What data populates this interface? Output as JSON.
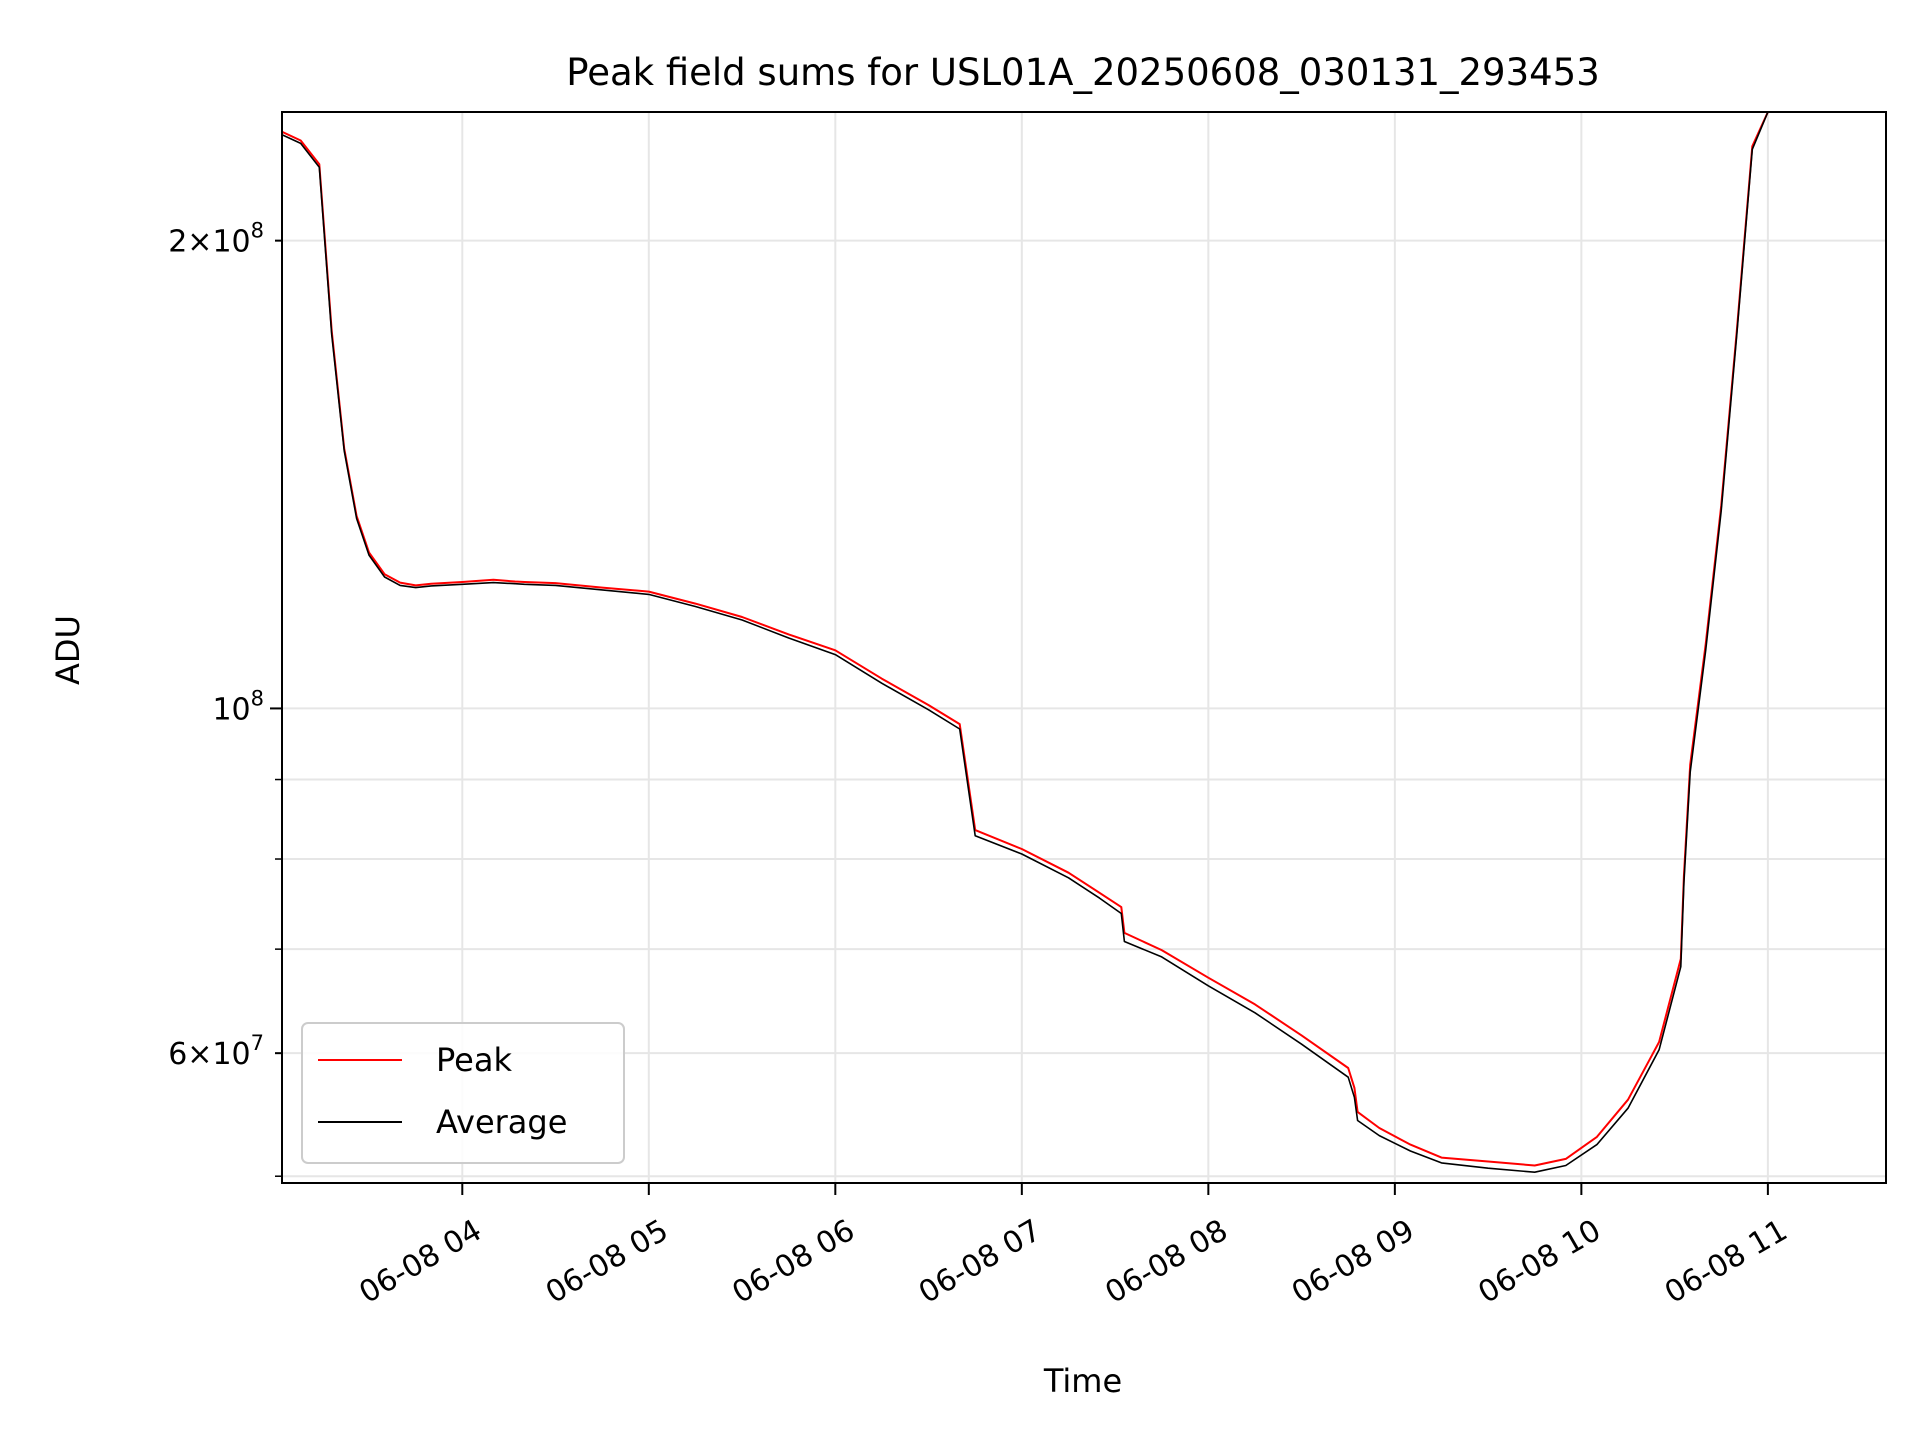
{
  "chart_data": {
    "type": "line",
    "title": "Peak field sums for USL01A_20250608_030131_293453",
    "xlabel": "Time",
    "ylabel": "ADU",
    "yscale": "log",
    "xlim": [
      "2025-06-08 03:02",
      "2025-06-08 11:38"
    ],
    "ylim": [
      49500000,
      242000000
    ],
    "x_ticks": [
      "06-08 04",
      "06-08 05",
      "06-08 06",
      "06-08 07",
      "06-08 08",
      "06-08 09",
      "06-08 10",
      "06-08 11"
    ],
    "y_ticks_major": [
      {
        "value": 100000000,
        "label": "10^8"
      }
    ],
    "y_ticks_minor": [
      {
        "value": 200000000,
        "label": "2×10^8"
      },
      {
        "value": 60000000,
        "label": "6×10^7"
      }
    ],
    "y_ticks_minor_unlabeled": [
      50000000,
      70000000,
      80000000,
      90000000,
      300000000,
      400000000
    ],
    "grid": true,
    "legend_placement": "lower-left",
    "series": [
      {
        "name": "Peak",
        "color": "#ff0000",
        "x": [
          "03:02",
          "03:08",
          "03:14",
          "03:18",
          "03:22",
          "03:26",
          "03:30",
          "03:35",
          "03:40",
          "03:45",
          "03:50",
          "04:00",
          "04:10",
          "04:17",
          "04:20",
          "04:30",
          "04:45",
          "05:00",
          "05:15",
          "05:30",
          "05:45",
          "06:00",
          "06:15",
          "06:30",
          "06:40",
          "06:45",
          "07:00",
          "07:15",
          "07:25",
          "07:32",
          "07:33",
          "07:45",
          "08:00",
          "08:15",
          "08:30",
          "08:45",
          "08:47",
          "08:48",
          "08:55",
          "09:05",
          "09:15",
          "09:30",
          "09:45",
          "09:55",
          "10:05",
          "10:15",
          "10:25",
          "10:32",
          "10:33",
          "10:35",
          "10:40",
          "10:45",
          "10:50",
          "10:55",
          "11:00",
          "11:05",
          "11:10",
          "11:15",
          "11:20",
          "11:25",
          "11:30"
        ],
        "values": [
          235000000,
          232000000,
          224000000,
          175000000,
          147000000,
          133000000,
          126000000,
          122000000,
          120500000,
          120000000,
          120300000,
          120600000,
          121000000,
          120700000,
          120600000,
          120400000,
          119600000,
          118900000,
          116800000,
          114500000,
          111600000,
          109000000,
          104500000,
          100500000,
          97700000,
          83500000,
          81200000,
          78400000,
          76100000,
          74500000,
          71700000,
          69900000,
          67100000,
          64500000,
          61600000,
          58700000,
          57000000,
          55000000,
          53700000,
          52400000,
          51400000,
          51100000,
          50800000,
          51300000,
          53000000,
          56000000,
          61000000,
          69000000,
          78000000,
          92000000,
          110000000,
          135000000,
          175000000,
          230000000,
          242000000,
          242000000,
          242000000,
          242000000,
          242000000,
          242000000,
          242000000
        ]
      },
      {
        "name": "Average",
        "color": "#000000",
        "x": [
          "03:02",
          "03:08",
          "03:14",
          "03:18",
          "03:22",
          "03:26",
          "03:30",
          "03:35",
          "03:40",
          "03:45",
          "03:50",
          "04:00",
          "04:10",
          "04:17",
          "04:20",
          "04:30",
          "04:45",
          "05:00",
          "05:15",
          "05:30",
          "05:45",
          "06:00",
          "06:15",
          "06:30",
          "06:40",
          "06:45",
          "07:00",
          "07:15",
          "07:25",
          "07:32",
          "07:33",
          "07:45",
          "08:00",
          "08:15",
          "08:30",
          "08:45",
          "08:47",
          "08:48",
          "08:55",
          "09:05",
          "09:15",
          "09:30",
          "09:45",
          "09:55",
          "10:05",
          "10:15",
          "10:25",
          "10:32",
          "10:33",
          "10:35",
          "10:40",
          "10:45",
          "10:50",
          "10:55",
          "11:00",
          "11:05",
          "11:10",
          "11:15",
          "11:20",
          "11:25",
          "11:30"
        ],
        "values": [
          234000000,
          231000000,
          223000000,
          174000000,
          146500000,
          132500000,
          125500000,
          121500000,
          120000000,
          119600000,
          119900000,
          120200000,
          120500000,
          120300000,
          120200000,
          120000000,
          119200000,
          118400000,
          116300000,
          114000000,
          111000000,
          108300000,
          103800000,
          99800000,
          97000000,
          82800000,
          80600000,
          77800000,
          75500000,
          73800000,
          70800000,
          69200000,
          66300000,
          63700000,
          60800000,
          57900000,
          56200000,
          54300000,
          53100000,
          51900000,
          51000000,
          50600000,
          50300000,
          50800000,
          52400000,
          55300000,
          60300000,
          68200000,
          77200000,
          91000000,
          109000000,
          134000000,
          174000000,
          229000000,
          242000000,
          242000000,
          242000000,
          242000000,
          242000000,
          242000000,
          242000000
        ]
      }
    ]
  }
}
